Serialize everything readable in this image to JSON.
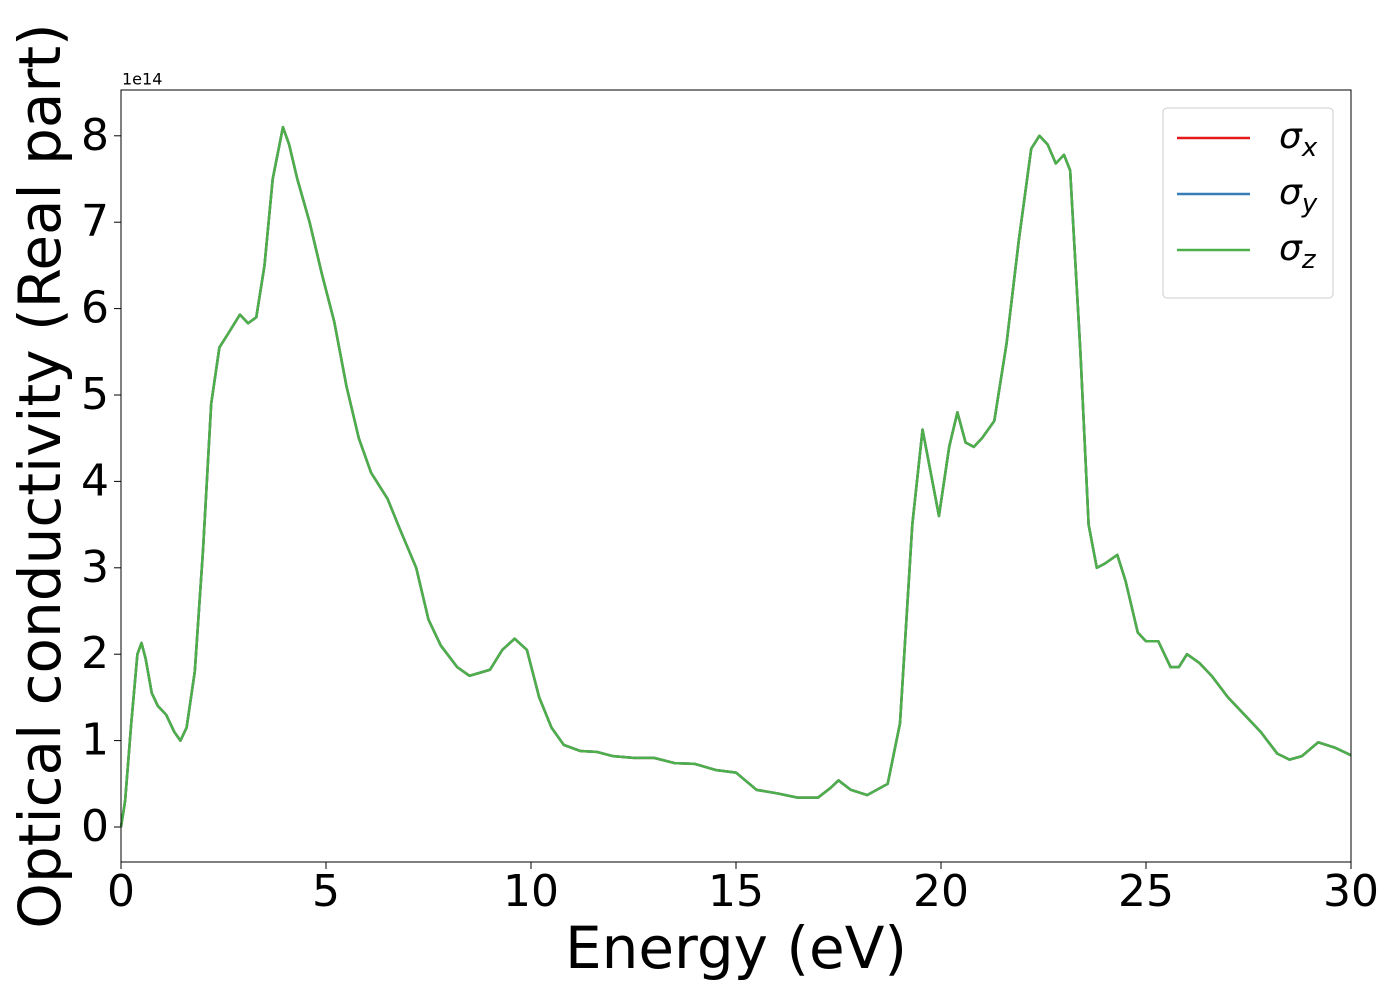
{
  "chart_data": {
    "type": "line",
    "xlabel": "Energy (eV)",
    "ylabel": "Optical conductivity (Real part)",
    "offset_text": "1e14",
    "xlim": [
      0,
      30
    ],
    "ylim": [
      -0.405,
      8.53
    ],
    "xticks": [
      0,
      5,
      10,
      15,
      20,
      25,
      30
    ],
    "yticks": [
      0,
      1,
      2,
      3,
      4,
      5,
      6,
      7,
      8
    ],
    "legend": "upper right",
    "x": [
      0,
      0.1,
      0.25,
      0.4,
      0.5,
      0.6,
      0.75,
      0.9,
      1.1,
      1.3,
      1.45,
      1.6,
      1.8,
      2.0,
      2.2,
      2.4,
      2.6,
      2.9,
      3.1,
      3.3,
      3.5,
      3.7,
      3.95,
      4.1,
      4.3,
      4.6,
      4.9,
      5.2,
      5.5,
      5.8,
      6.1,
      6.5,
      6.8,
      7.2,
      7.5,
      7.8,
      8.2,
      8.5,
      9.0,
      9.3,
      9.6,
      9.9,
      10.2,
      10.5,
      10.8,
      11.2,
      11.6,
      12.0,
      12.5,
      13.0,
      13.5,
      14.0,
      14.5,
      15.0,
      15.5,
      16.0,
      16.5,
      17.0,
      17.3,
      17.5,
      17.8,
      18.2,
      18.7,
      19.0,
      19.3,
      19.55,
      19.75,
      19.95,
      20.2,
      20.4,
      20.6,
      20.8,
      21.0,
      21.3,
      21.6,
      21.9,
      22.2,
      22.4,
      22.6,
      22.8,
      23.0,
      23.15,
      23.4,
      23.6,
      23.8,
      24.0,
      24.3,
      24.5,
      24.8,
      25.0,
      25.3,
      25.6,
      25.8,
      26.0,
      26.3,
      26.6,
      27.0,
      27.5,
      27.8,
      28.2,
      28.5,
      28.8,
      29.2,
      29.6,
      30.0
    ],
    "series": [
      {
        "name": "σx",
        "color": "#e41a1c",
        "values": [
          0,
          0.3,
          1.2,
          2.0,
          2.13,
          1.95,
          1.55,
          1.4,
          1.3,
          1.1,
          1.0,
          1.15,
          1.8,
          3.2,
          4.9,
          5.55,
          5.7,
          5.93,
          5.83,
          5.9,
          6.5,
          7.5,
          8.1,
          7.9,
          7.5,
          7.0,
          6.4,
          5.85,
          5.1,
          4.5,
          4.1,
          3.8,
          3.45,
          3.0,
          2.4,
          2.1,
          1.85,
          1.75,
          1.82,
          2.05,
          2.18,
          2.05,
          1.5,
          1.15,
          0.95,
          0.88,
          0.87,
          0.82,
          0.8,
          0.8,
          0.74,
          0.73,
          0.66,
          0.63,
          0.43,
          0.39,
          0.34,
          0.34,
          0.45,
          0.54,
          0.43,
          0.37,
          0.5,
          1.2,
          3.5,
          4.6,
          4.1,
          3.6,
          4.4,
          4.8,
          4.45,
          4.4,
          4.5,
          4.7,
          5.6,
          6.8,
          7.85,
          8.0,
          7.9,
          7.68,
          7.78,
          7.6,
          5.5,
          3.5,
          3.0,
          3.05,
          3.15,
          2.85,
          2.25,
          2.15,
          2.15,
          1.85,
          1.85,
          2.0,
          1.9,
          1.75,
          1.5,
          1.25,
          1.1,
          0.85,
          0.78,
          0.82,
          0.98,
          0.92,
          0.83
        ]
      },
      {
        "name": "σy",
        "color": "#377eb8",
        "values": [
          0,
          0.3,
          1.2,
          2.0,
          2.13,
          1.95,
          1.55,
          1.4,
          1.3,
          1.1,
          1.0,
          1.15,
          1.8,
          3.2,
          4.9,
          5.55,
          5.7,
          5.93,
          5.83,
          5.9,
          6.5,
          7.5,
          8.1,
          7.9,
          7.5,
          7.0,
          6.4,
          5.85,
          5.1,
          4.5,
          4.1,
          3.8,
          3.45,
          3.0,
          2.4,
          2.1,
          1.85,
          1.75,
          1.82,
          2.05,
          2.18,
          2.05,
          1.5,
          1.15,
          0.95,
          0.88,
          0.87,
          0.82,
          0.8,
          0.8,
          0.74,
          0.73,
          0.66,
          0.63,
          0.43,
          0.39,
          0.34,
          0.34,
          0.45,
          0.54,
          0.43,
          0.37,
          0.5,
          1.2,
          3.5,
          4.6,
          4.1,
          3.6,
          4.4,
          4.8,
          4.45,
          4.4,
          4.5,
          4.7,
          5.6,
          6.8,
          7.85,
          8.0,
          7.9,
          7.68,
          7.78,
          7.6,
          5.5,
          3.5,
          3.0,
          3.05,
          3.15,
          2.85,
          2.25,
          2.15,
          2.15,
          1.85,
          1.85,
          2.0,
          1.9,
          1.75,
          1.5,
          1.25,
          1.1,
          0.85,
          0.78,
          0.82,
          0.98,
          0.92,
          0.83
        ]
      },
      {
        "name": "σz",
        "color": "#4daf4a",
        "values": [
          0,
          0.3,
          1.2,
          2.0,
          2.13,
          1.95,
          1.55,
          1.4,
          1.3,
          1.1,
          1.0,
          1.15,
          1.8,
          3.2,
          4.9,
          5.55,
          5.7,
          5.93,
          5.83,
          5.9,
          6.5,
          7.5,
          8.1,
          7.9,
          7.5,
          7.0,
          6.4,
          5.85,
          5.1,
          4.5,
          4.1,
          3.8,
          3.45,
          3.0,
          2.4,
          2.1,
          1.85,
          1.75,
          1.82,
          2.05,
          2.18,
          2.05,
          1.5,
          1.15,
          0.95,
          0.88,
          0.87,
          0.82,
          0.8,
          0.8,
          0.74,
          0.73,
          0.66,
          0.63,
          0.43,
          0.39,
          0.34,
          0.34,
          0.45,
          0.54,
          0.43,
          0.37,
          0.5,
          1.2,
          3.5,
          4.6,
          4.1,
          3.6,
          4.4,
          4.8,
          4.45,
          4.4,
          4.5,
          4.7,
          5.6,
          6.8,
          7.85,
          8.0,
          7.9,
          7.68,
          7.78,
          7.6,
          5.5,
          3.5,
          3.0,
          3.05,
          3.15,
          2.85,
          2.25,
          2.15,
          2.15,
          1.85,
          1.85,
          2.0,
          1.9,
          1.75,
          1.5,
          1.25,
          1.1,
          0.85,
          0.78,
          0.82,
          0.98,
          0.92,
          0.83
        ]
      }
    ]
  }
}
